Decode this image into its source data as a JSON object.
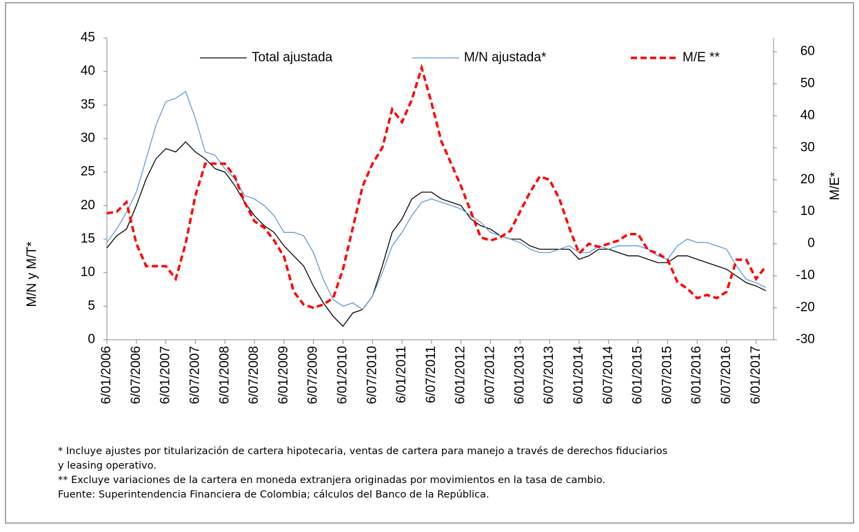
{
  "chart_data": {
    "type": "line",
    "categories": [
      "6/01/2006",
      null,
      null,
      "6/07/2006",
      null,
      null,
      "6/01/2007",
      null,
      null,
      "6/07/2007",
      null,
      null,
      "6/01/2008",
      null,
      null,
      "6/07/2008",
      null,
      null,
      "6/01/2009",
      null,
      null,
      "6/07/2009",
      null,
      null,
      "6/01/2010",
      null,
      null,
      "6/07/2010",
      null,
      null,
      "6/01/2011",
      null,
      null,
      "6/07/2011",
      null,
      null,
      "6/01/2012",
      null,
      null,
      "6/07/2012",
      null,
      null,
      "6/01/2013",
      null,
      null,
      "6/07/2013",
      null,
      null,
      "6/01/2014",
      null,
      null,
      "6/07/2014",
      null,
      null,
      "6/01/2015",
      null,
      null,
      "6/07/2015",
      null,
      null,
      "6/01/2016",
      null,
      null,
      "6/07/2016",
      null,
      null,
      "6/01/2017",
      null
    ],
    "series": [
      {
        "name": "Total ajustada",
        "color": "#000000",
        "dash": false,
        "values": [
          13.7,
          15.5,
          16.5,
          20,
          24,
          27,
          28.5,
          28,
          29.5,
          28,
          27,
          25.5,
          25,
          23,
          20.5,
          18.5,
          17,
          16,
          14,
          12.5,
          11,
          8,
          5.5,
          3.5,
          2,
          4,
          4.5,
          6.5,
          11,
          16,
          18,
          21,
          22,
          22,
          21,
          20.5,
          20,
          18,
          17,
          16.5,
          15.5,
          15,
          15,
          14,
          13.5,
          13.5,
          13.5,
          13.5,
          12,
          12.5,
          13.5,
          13.5,
          13,
          12.5,
          12.5,
          12,
          11.5,
          11.5,
          12.5,
          12.5,
          12,
          11.5,
          11,
          10.5,
          9.5,
          8.5,
          8,
          7.3
        ]
      },
      {
        "name": "M/N ajustada*",
        "color": "#5b9bd5",
        "dash": false,
        "values": [
          14.5,
          16.5,
          19,
          22,
          27,
          32,
          35.5,
          36,
          37,
          33,
          28,
          27.5,
          25.5,
          24,
          21.5,
          21,
          20,
          18.5,
          16,
          16,
          15.5,
          13,
          9,
          6,
          5,
          5.5,
          4.5,
          6.5,
          10,
          14,
          16,
          18.5,
          20.5,
          21,
          20.5,
          20,
          19.5,
          18.5,
          17.5,
          16,
          15.5,
          15,
          14.5,
          13.5,
          13,
          13,
          13.5,
          14,
          13,
          13,
          14,
          13.5,
          14,
          14,
          14,
          13.5,
          12.5,
          12,
          14,
          15,
          14.5,
          14.5,
          14,
          13.5,
          11,
          9,
          8.5,
          7.8
        ]
      },
      {
        "name": "M/E **",
        "color": "#ff0000",
        "dash": true,
        "axis": "y2",
        "values": [
          9.5,
          10,
          13,
          0,
          -7,
          -7,
          -7,
          -11,
          0,
          15,
          25,
          25,
          25,
          21,
          13,
          7,
          5,
          1,
          -4,
          -15,
          -19,
          -20,
          -19,
          -17,
          -8,
          5,
          18,
          25,
          30,
          42,
          38,
          45,
          55,
          44,
          32,
          25,
          18,
          10,
          2,
          1,
          2,
          4,
          10,
          16,
          21,
          20,
          14,
          5,
          -3,
          0,
          -1,
          0,
          1,
          3,
          3,
          -2,
          -3,
          -5,
          -12,
          -14,
          -17,
          -16,
          -17,
          -15,
          -5,
          -5,
          -11,
          -7
        ]
      }
    ],
    "ylabel": "M/N y M/T*",
    "y2label": "M/E*",
    "ylim": [
      0,
      45
    ],
    "yticks": [
      0,
      5,
      10,
      15,
      20,
      25,
      30,
      35,
      40,
      45
    ],
    "y2lim": [
      -30,
      64.3
    ],
    "y2ticks": [
      -30,
      -20,
      -10,
      0,
      10,
      20,
      30,
      40,
      50,
      60
    ],
    "notes": [
      "* Incluye ajustes por titularización de cartera hipotecaria, ventas de cartera para manejo a través de derechos fiduciarios",
      "y leasing operativo.",
      "** Excluye variaciones de la cartera en moneda extranjera originadas por movimientos en la tasa de cambio.",
      "Fuente: Superintendencia Financiera de Colombia; cálculos del Banco de la República."
    ]
  }
}
